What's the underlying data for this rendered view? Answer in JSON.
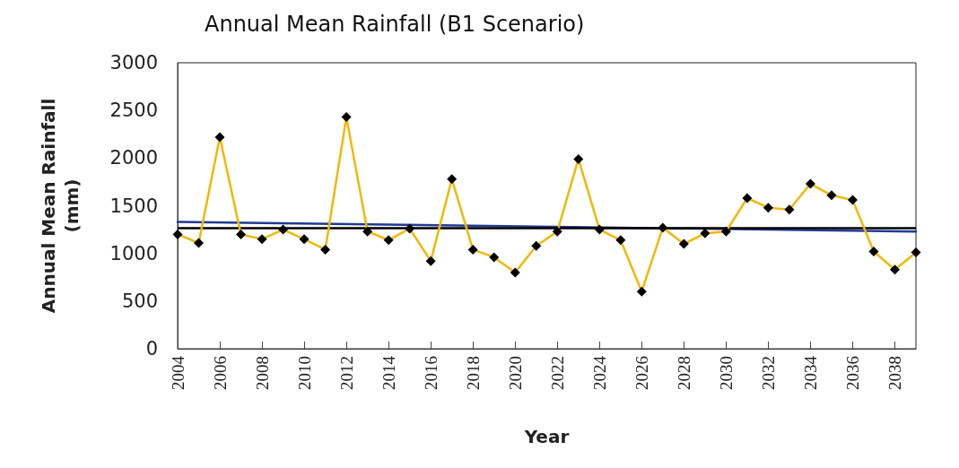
{
  "chart_data": {
    "type": "line",
    "title": "Annual Mean Rainfall (B1 Scenario)",
    "xlabel": "Year",
    "ylabel": "Annual Mean Rainfall\n(mm)",
    "x": [
      2004,
      2005,
      2006,
      2007,
      2008,
      2009,
      2010,
      2011,
      2012,
      2013,
      2014,
      2015,
      2016,
      2017,
      2018,
      2019,
      2020,
      2021,
      2022,
      2023,
      2024,
      2025,
      2026,
      2027,
      2028,
      2029,
      2030,
      2031,
      2032,
      2033,
      2034,
      2035,
      2036,
      2037,
      2038,
      2039
    ],
    "series": [
      {
        "color": "#f2b705",
        "marker": "diamond",
        "values": [
          1200,
          1110,
          2220,
          1200,
          1150,
          1250,
          1150,
          1040,
          2430,
          1230,
          1140,
          1260,
          920,
          1780,
          1040,
          960,
          800,
          1080,
          1230,
          1990,
          1250,
          1140,
          600,
          1270,
          1100,
          1210,
          1230,
          1580,
          1480,
          1460,
          1730,
          1610,
          1560,
          1020,
          830,
          1010
        ]
      },
      {
        "type": "line",
        "color": "#1f3a93",
        "marker": "none",
        "x": [
          2004,
          2039
        ],
        "values": [
          1330,
          1230
        ]
      }
    ],
    "ref_lines": [
      {
        "axis": "y",
        "value": 1270,
        "color": "#000000"
      }
    ],
    "xlim": [
      2004,
      2039
    ],
    "xticks": [
      2004,
      2006,
      2008,
      2010,
      2012,
      2014,
      2016,
      2018,
      2020,
      2022,
      2024,
      2026,
      2028,
      2030,
      2032,
      2034,
      2036,
      2038
    ],
    "ylim": [
      0,
      3000
    ],
    "yticks": [
      0,
      500,
      1000,
      1500,
      2000,
      2500,
      3000
    ],
    "grid": false,
    "line_style": "solid"
  }
}
